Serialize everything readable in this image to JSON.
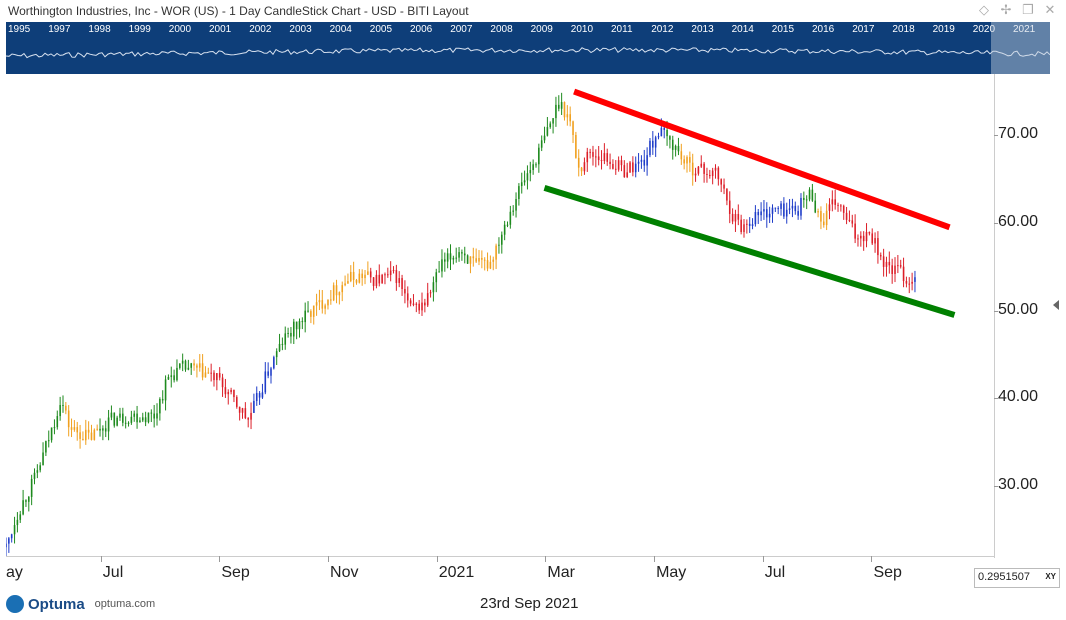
{
  "title": "Worthington Industries, Inc - WOR (US) - 1 Day CandleStick Chart - USD - BITI Layout",
  "overview_years": [
    "1995",
    "1997",
    "1998",
    "1999",
    "2000",
    "2001",
    "2002",
    "2003",
    "2004",
    "2005",
    "2006",
    "2007",
    "2008",
    "2009",
    "2010",
    "2011",
    "2012",
    "2013",
    "2014",
    "2015",
    "2016",
    "2017",
    "2018",
    "2019",
    "2020",
    "2021"
  ],
  "footer": {
    "logo_text": "Optuma",
    "logo_url": "optuma.com",
    "date": "23rd Sep 2021",
    "scale_value": "0.2951507",
    "scale_mode": "XY"
  },
  "colors": {
    "overview_bg": "#0e3e79",
    "resistance_line": "#ff0000",
    "support_line": "#008000",
    "candle_green": "#1e8a1e",
    "candle_orange": "#f0a01e",
    "candle_red": "#dc1e28",
    "candle_blue": "#1e3cc8"
  },
  "chart_data": {
    "type": "candlestick",
    "ylim": [
      22,
      77
    ],
    "y_ticks": [
      "30.00",
      "40.00",
      "50.00",
      "60.00",
      "70.00"
    ],
    "y_tick_values": [
      30,
      40,
      50,
      60,
      70
    ],
    "x_tick_labels": [
      "ay",
      "Jul",
      "Sep",
      "Nov",
      "2021",
      "Mar",
      "May",
      "Jul",
      "Sep"
    ],
    "x_tick_positions": [
      0.0,
      0.1,
      0.22,
      0.33,
      0.44,
      0.55,
      0.66,
      0.77,
      0.88
    ],
    "price_path": [
      [
        0.0,
        23.0,
        "blue"
      ],
      [
        0.012,
        27.0,
        "green"
      ],
      [
        0.03,
        31.0,
        "green"
      ],
      [
        0.048,
        37.0,
        "green"
      ],
      [
        0.055,
        40.0,
        "green"
      ],
      [
        0.065,
        36.5,
        "orange"
      ],
      [
        0.085,
        35.5,
        "orange"
      ],
      [
        0.105,
        37.5,
        "green"
      ],
      [
        0.125,
        38.0,
        "green"
      ],
      [
        0.15,
        38.0,
        "green"
      ],
      [
        0.165,
        42.5,
        "green"
      ],
      [
        0.18,
        43.5,
        "green"
      ],
      [
        0.2,
        43.0,
        "orange"
      ],
      [
        0.215,
        42.0,
        "red"
      ],
      [
        0.235,
        39.0,
        "red"
      ],
      [
        0.245,
        37.5,
        "red"
      ],
      [
        0.255,
        40.0,
        "blue"
      ],
      [
        0.265,
        43.0,
        "blue"
      ],
      [
        0.28,
        46.5,
        "green"
      ],
      [
        0.3,
        49.0,
        "green"
      ],
      [
        0.315,
        50.5,
        "orange"
      ],
      [
        0.33,
        52.0,
        "orange"
      ],
      [
        0.345,
        53.5,
        "orange"
      ],
      [
        0.36,
        54.0,
        "orange"
      ],
      [
        0.375,
        53.5,
        "red"
      ],
      [
        0.395,
        54.0,
        "red"
      ],
      [
        0.41,
        50.0,
        "red"
      ],
      [
        0.425,
        51.0,
        "red"
      ],
      [
        0.44,
        55.0,
        "green"
      ],
      [
        0.46,
        57.0,
        "green"
      ],
      [
        0.475,
        55.0,
        "orange"
      ],
      [
        0.49,
        55.5,
        "orange"
      ],
      [
        0.505,
        60.0,
        "green"
      ],
      [
        0.52,
        64.0,
        "green"
      ],
      [
        0.535,
        67.0,
        "green"
      ],
      [
        0.55,
        71.0,
        "green"
      ],
      [
        0.56,
        74.0,
        "green"
      ],
      [
        0.57,
        72.0,
        "orange"
      ],
      [
        0.58,
        66.0,
        "orange"
      ],
      [
        0.59,
        68.0,
        "red"
      ],
      [
        0.605,
        67.5,
        "red"
      ],
      [
        0.625,
        66.0,
        "red"
      ],
      [
        0.645,
        67.0,
        "blue"
      ],
      [
        0.66,
        70.5,
        "blue"
      ],
      [
        0.675,
        69.0,
        "green"
      ],
      [
        0.69,
        66.5,
        "orange"
      ],
      [
        0.705,
        66.0,
        "red"
      ],
      [
        0.72,
        65.5,
        "red"
      ],
      [
        0.735,
        61.0,
        "red"
      ],
      [
        0.745,
        59.5,
        "red"
      ],
      [
        0.76,
        61.0,
        "blue"
      ],
      [
        0.78,
        61.5,
        "blue"
      ],
      [
        0.8,
        61.5,
        "blue"
      ],
      [
        0.815,
        63.5,
        "green"
      ],
      [
        0.825,
        60.0,
        "orange"
      ],
      [
        0.84,
        62.5,
        "red"
      ],
      [
        0.86,
        58.5,
        "red"
      ],
      [
        0.875,
        59.0,
        "red"
      ],
      [
        0.89,
        55.0,
        "red"
      ],
      [
        0.905,
        54.5,
        "red"
      ],
      [
        0.915,
        53.0,
        "red"
      ],
      [
        0.92,
        54.5,
        "blue"
      ]
    ],
    "trendlines": [
      {
        "name": "resistance",
        "color": "red",
        "from": [
          0.575,
          75.0
        ],
        "to": [
          0.955,
          59.5
        ]
      },
      {
        "name": "support",
        "color": "green",
        "from": [
          0.545,
          64.0
        ],
        "to": [
          0.96,
          49.5
        ]
      }
    ]
  }
}
